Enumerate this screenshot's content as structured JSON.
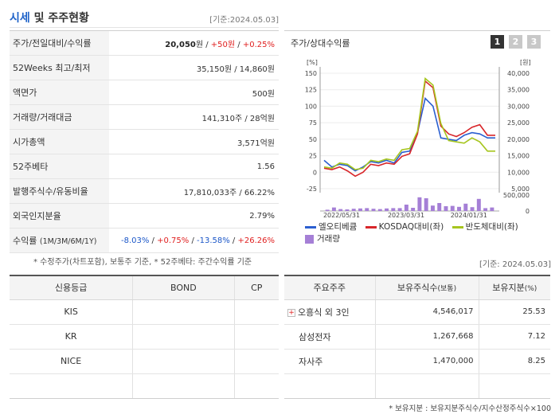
{
  "header": {
    "title_main": "시세",
    "title_rest": " 및 주주현황",
    "date": "[기준:2024.05.03]"
  },
  "price_table": {
    "rows": [
      {
        "label": "주가/전일대비/수익률",
        "value_bold": "20,050",
        "value_rest": "원 / ",
        "change": "+50원",
        "sep": " / ",
        "rate": "+0.25%"
      },
      {
        "label": "52Weeks 최고/최저",
        "value": "35,150원 / 14,860원"
      },
      {
        "label": "액면가",
        "value": "500원"
      },
      {
        "label": "거래량/거래대금",
        "value": "141,310주 / 28억원"
      },
      {
        "label": "시가총액",
        "value": "3,571억원"
      },
      {
        "label": "52주베타",
        "value": "1.56"
      },
      {
        "label": "발행주식수/유동비율",
        "value": "17,810,033주 / 66.22%"
      },
      {
        "label": "외국인지분율",
        "value": "2.79%"
      }
    ],
    "returns": {
      "label": "수익률",
      "label_sub": "(1M/3M/6M/1Y)",
      "v1": "-8.03%",
      "v2": "+0.75%",
      "v3": "-13.58%",
      "v4": "+26.26%"
    },
    "note": "* 수정주가(차트포함), 보통주 기준, * 52주베타: 주간수익률 기준"
  },
  "chart_panel": {
    "title": "주가/상대수익률",
    "pages": [
      "1",
      "2",
      "3"
    ],
    "active_page": 0
  },
  "chart_data": {
    "type": "line",
    "left_unit": "[%]",
    "right_unit": "[원]",
    "left_ticks": [
      "150",
      "125",
      "100",
      "75",
      "50",
      "25",
      "0",
      "-25"
    ],
    "right_ticks": [
      "40,000",
      "35,000",
      "30,000",
      "25,000",
      "20,000",
      "15,000",
      "10,000",
      "5,000"
    ],
    "volume_ticks": [
      "500,000",
      "0"
    ],
    "x_labels": [
      "2022/05/31",
      "2023/03/31",
      "2024/01/31"
    ],
    "ylim": [
      -25,
      150
    ],
    "volume_max": 500000,
    "series": [
      {
        "name": "엘오티베큠",
        "color": "#2b5fd0",
        "values": [
          18,
          8,
          12,
          10,
          2,
          8,
          16,
          14,
          18,
          14,
          30,
          32,
          60,
          112,
          100,
          52,
          50,
          48,
          56,
          60,
          58,
          52,
          52
        ]
      },
      {
        "name": "KOSDAQ대비(좌)",
        "color": "#d8262a",
        "values": [
          6,
          4,
          8,
          2,
          -6,
          0,
          12,
          10,
          14,
          12,
          24,
          28,
          58,
          138,
          128,
          70,
          58,
          54,
          60,
          68,
          72,
          56,
          56
        ]
      },
      {
        "name": "반도체대비(좌)",
        "color": "#a6c51e",
        "values": [
          8,
          6,
          14,
          12,
          4,
          6,
          18,
          16,
          20,
          18,
          34,
          36,
          62,
          142,
          132,
          74,
          48,
          46,
          44,
          52,
          46,
          32,
          32
        ]
      }
    ],
    "volume": {
      "name": "거래량",
      "color": "#a57fd6",
      "values": [
        40000,
        110000,
        60000,
        50000,
        70000,
        80000,
        90000,
        70000,
        60000,
        80000,
        90000,
        90000,
        200000,
        100000,
        430000,
        400000,
        170000,
        250000,
        150000,
        160000,
        130000,
        230000,
        120000,
        380000,
        90000,
        110000
      ]
    }
  },
  "date2": "[기준: 2024.05.03]",
  "credit_table": {
    "headers": [
      "신용등급",
      "BOND",
      "CP"
    ],
    "rows": [
      {
        "agency": "KIS",
        "bond": "",
        "cp": ""
      },
      {
        "agency": "KR",
        "bond": "",
        "cp": ""
      },
      {
        "agency": "NICE",
        "bond": "",
        "cp": ""
      },
      {
        "agency": "",
        "bond": "",
        "cp": ""
      }
    ]
  },
  "holders_table": {
    "headers": {
      "name": "주요주주",
      "shares": "보유주식수",
      "shares_unit": "(보통)",
      "pct": "보유지분",
      "pct_unit": "(%)"
    },
    "rows": [
      {
        "name": "오흥식 외 3인",
        "shares": "4,546,017",
        "pct": "25.53",
        "expand": "+"
      },
      {
        "name": "삼성전자",
        "shares": "1,267,668",
        "pct": "7.12"
      },
      {
        "name": "자사주",
        "shares": "1,470,000",
        "pct": "8.25"
      },
      {
        "name": "",
        "shares": "",
        "pct": ""
      }
    ],
    "note": "* 보유지분 : 보유지분주식수/지수산정주식수×100"
  }
}
